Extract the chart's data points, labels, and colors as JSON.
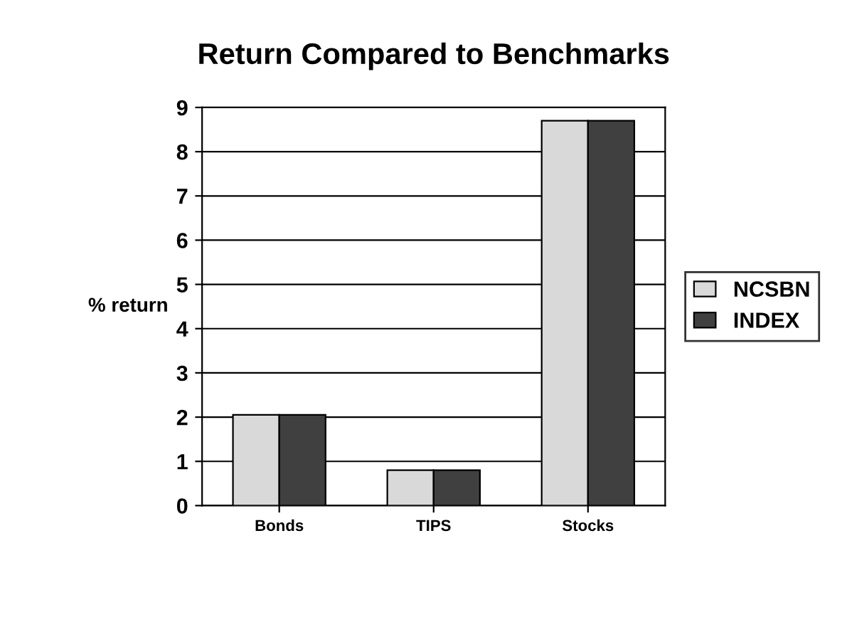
{
  "chart_data": {
    "type": "bar",
    "title": "Return Compared to Benchmarks",
    "ylabel": "% return",
    "categories": [
      "Bonds",
      "TIPS",
      "Stocks"
    ],
    "series": [
      {
        "name": "NCSBN",
        "color": "#d9d9d9",
        "values": [
          2.05,
          0.8,
          8.7
        ]
      },
      {
        "name": "INDEX",
        "color": "#404040",
        "values": [
          2.05,
          0.8,
          8.7
        ]
      }
    ],
    "ylim": [
      0,
      9
    ],
    "yticks": [
      0,
      1,
      2,
      3,
      4,
      5,
      6,
      7,
      8,
      9
    ],
    "grid": "y",
    "legend": "right"
  }
}
